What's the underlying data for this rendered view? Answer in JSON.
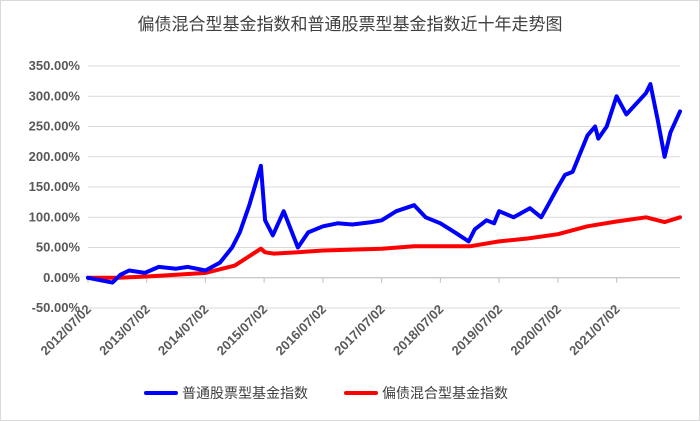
{
  "chart_data": {
    "type": "line",
    "title": "偏债混合型基金指数和普通股票型基金指数近十年走势图",
    "xlabel": "",
    "ylabel": "",
    "x_range": [
      "2012-07-02",
      "2022-07-31"
    ],
    "x_tick_labels": [
      "2012/07/02",
      "2013/07/02",
      "2014/07/02",
      "2015/07/02",
      "2016/07/02",
      "2017/07/02",
      "2018/07/02",
      "2019/07/02",
      "2020/07/02",
      "2021/07/02"
    ],
    "y_ticks": [
      -50,
      0,
      50,
      100,
      150,
      200,
      250,
      300,
      350
    ],
    "y_tick_labels": [
      "-50.00%",
      "0.00%",
      "50.00%",
      "100.00%",
      "150.00%",
      "200.00%",
      "250.00%",
      "300.00%",
      "350.00%"
    ],
    "ylim": [
      -50,
      350
    ],
    "grid": "horizontal",
    "legend_position": "bottom",
    "series": [
      {
        "name": "普通股票型基金指数",
        "color": "#0000ff",
        "x": [
          "2012-07-02",
          "2012-12-01",
          "2013-01-20",
          "2013-03-15",
          "2013-06-20",
          "2013-09-15",
          "2014-01-01",
          "2014-03-15",
          "2014-07-02",
          "2014-10-01",
          "2014-12-15",
          "2015-02-01",
          "2015-04-01",
          "2015-06-12",
          "2015-07-08",
          "2015-08-25",
          "2015-11-01",
          "2016-01-28",
          "2016-04-01",
          "2016-07-02",
          "2016-10-01",
          "2017-01-01",
          "2017-05-01",
          "2017-07-02",
          "2017-10-01",
          "2018-01-20",
          "2018-04-01",
          "2018-07-02",
          "2018-10-01",
          "2018-12-25",
          "2019-02-01",
          "2019-04-15",
          "2019-06-01",
          "2019-07-02",
          "2019-10-01",
          "2020-01-10",
          "2020-03-20",
          "2020-05-01",
          "2020-07-02",
          "2020-08-15",
          "2020-10-01",
          "2021-01-01",
          "2021-02-18",
          "2021-03-10",
          "2021-05-01",
          "2021-07-02",
          "2021-09-01",
          "2021-12-31",
          "2022-01-28",
          "2022-03-15",
          "2022-04-26",
          "2022-06-01",
          "2022-07-31"
        ],
        "values": [
          0,
          -8,
          5,
          12,
          8,
          18,
          15,
          18,
          12,
          25,
          50,
          75,
          120,
          185,
          95,
          70,
          110,
          50,
          75,
          85,
          90,
          88,
          92,
          95,
          110,
          120,
          100,
          90,
          75,
          60,
          80,
          95,
          90,
          110,
          100,
          115,
          100,
          120,
          150,
          170,
          175,
          235,
          250,
          230,
          250,
          300,
          270,
          305,
          320,
          260,
          200,
          240,
          275
        ]
      },
      {
        "name": "偏债混合型基金指数",
        "color": "#ff0000",
        "x": [
          "2012-07-02",
          "2013-01-01",
          "2013-07-02",
          "2014-01-01",
          "2014-07-02",
          "2015-01-01",
          "2015-06-12",
          "2015-07-08",
          "2015-09-01",
          "2016-01-28",
          "2016-07-02",
          "2017-07-02",
          "2018-01-20",
          "2018-07-02",
          "2019-01-01",
          "2019-07-02",
          "2020-01-01",
          "2020-07-02",
          "2021-01-01",
          "2021-07-02",
          "2022-01-01",
          "2022-04-26",
          "2022-07-31"
        ],
        "values": [
          0,
          0,
          2,
          5,
          8,
          20,
          48,
          42,
          40,
          42,
          45,
          48,
          52,
          52,
          52,
          60,
          65,
          72,
          85,
          93,
          100,
          92,
          100
        ]
      }
    ]
  }
}
